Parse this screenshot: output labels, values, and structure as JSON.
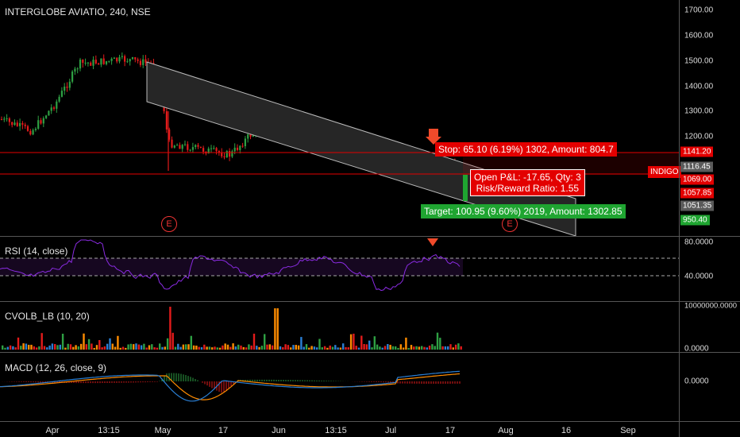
{
  "main": {
    "title": "INTERGLOBE AVIATIO, 240, NSE",
    "symbol_tag": "INDIGO",
    "earnings_label": "E",
    "price_ticks": [
      "1700.00",
      "1600.00",
      "1500.00",
      "1400.00",
      "1300.00",
      "1200.00"
    ],
    "price_tags": [
      {
        "text": "1141.20",
        "color": "#e30000"
      },
      {
        "text": "1116.45",
        "color": "#5a5a5a"
      },
      {
        "text": "1069.00",
        "color": "#e30000"
      },
      {
        "text": "1057.85",
        "color": "#e30000"
      },
      {
        "text": "1051.35",
        "color": "#5a5a5a"
      },
      {
        "text": "950.40",
        "color": "#1fa531"
      }
    ],
    "stop_box": "Stop: 65.10 (6.19%) 1302, Amount: 804.7",
    "pnl_line1": "Open P&L: -17.65, Qty: 3",
    "pnl_line2": "Risk/Reward Ratio: 1.55",
    "target_box": "Target: 100.95 (9.60%) 2019, Amount: 1302.85"
  },
  "rsi": {
    "title": "RSI (14, close)",
    "ticks": [
      "80.0000",
      "40.0000"
    ]
  },
  "cvol": {
    "title": "CVOLB_LB (10, 20)",
    "ticks": [
      "10000000.0000",
      "0.0000"
    ]
  },
  "macd": {
    "title": "MACD (12, 26, close, 9)",
    "ticks": [
      "0.0000"
    ]
  },
  "time_axis": [
    "Apr",
    "13:15",
    "May",
    "17",
    "Jun",
    "13:15",
    "Jul",
    "17",
    "Aug",
    "16",
    "Sep"
  ],
  "colors": {
    "up": "#2ea043",
    "down": "#e31b1b",
    "rsi": "#8a2be2",
    "macd": "#2a7fd4",
    "signal": "#ff8c00"
  }
}
